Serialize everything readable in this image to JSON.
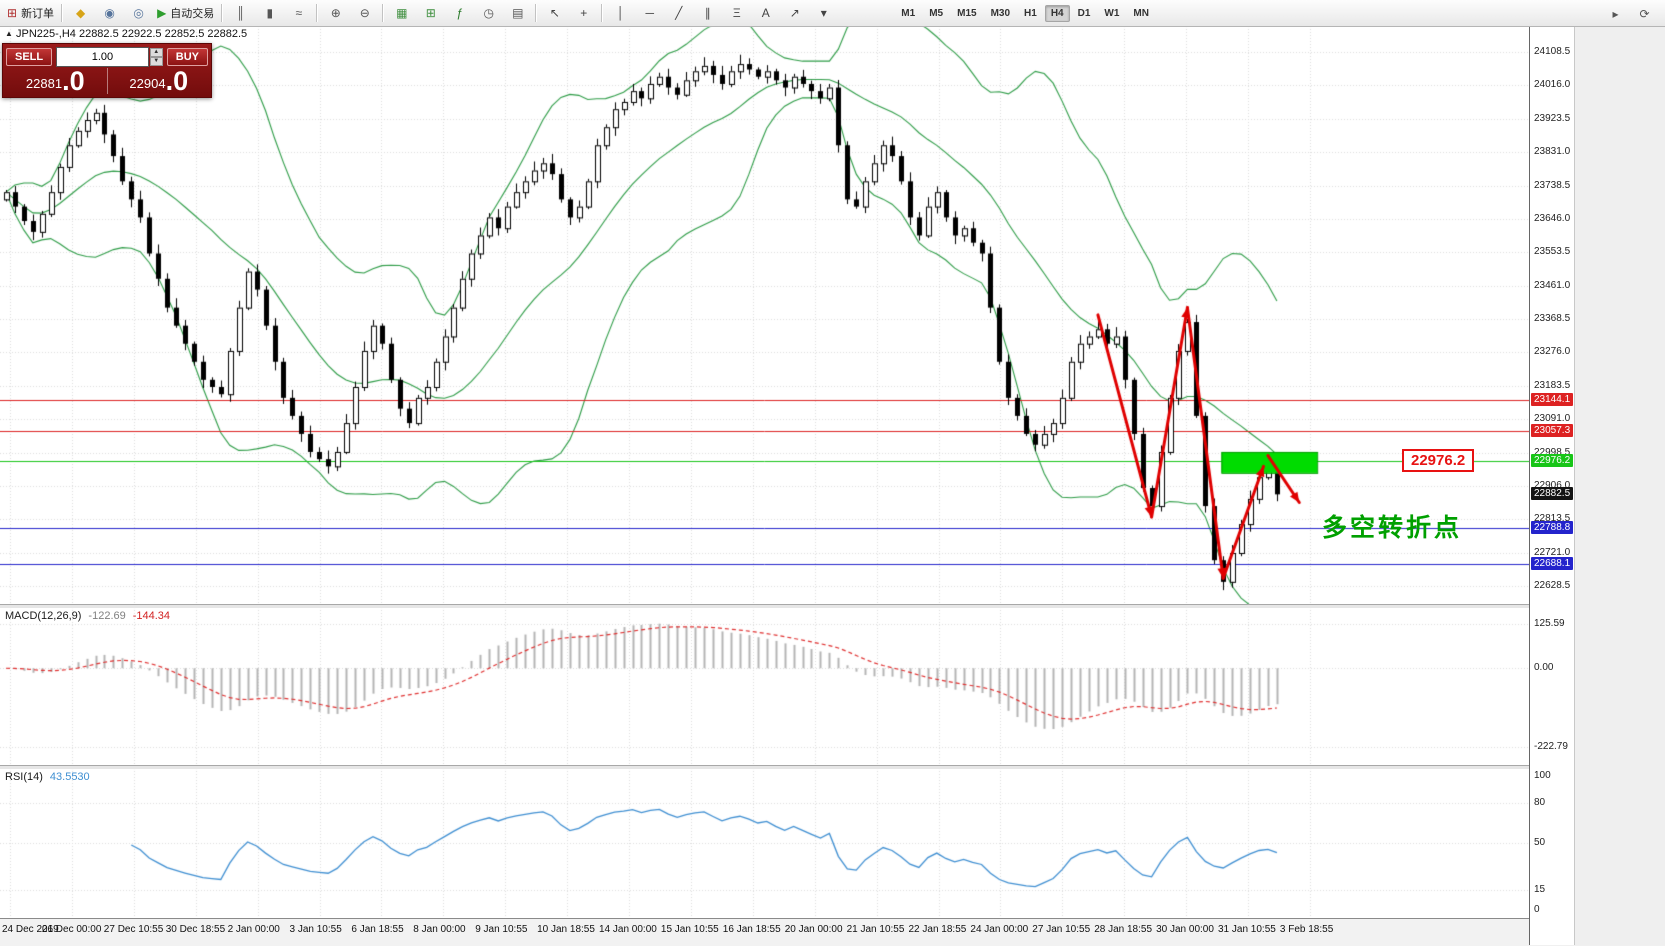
{
  "toolbar": {
    "groups": [
      {
        "items": [
          {
            "name": "new-order-button",
            "glyph": "⊞",
            "color": "#b03030",
            "label": "新订单"
          }
        ]
      },
      {
        "items": [
          {
            "name": "charts-list-icon",
            "glyph": "◆",
            "color": "#d7a418"
          },
          {
            "name": "profiles-icon",
            "glyph": "◉",
            "color": "#56749c"
          },
          {
            "name": "marketwatch-icon",
            "glyph": "◎",
            "color": "#56749c"
          },
          {
            "name": "autotrade-button",
            "glyph": "▶",
            "color": "#2e9e2e",
            "label": "自动交易"
          }
        ]
      },
      {
        "items": [
          {
            "name": "bar-chart-icon",
            "glyph": "║",
            "color": "#555555"
          },
          {
            "name": "candlestick-chart-icon",
            "glyph": "▮",
            "color": "#555555"
          },
          {
            "name": "line-chart-icon",
            "glyph": "≈",
            "color": "#555555"
          }
        ]
      },
      {
        "items": [
          {
            "name": "zoom-in-icon",
            "glyph": "⊕",
            "color": "#555555"
          },
          {
            "name": "zoom-out-icon",
            "glyph": "⊖",
            "color": "#555555"
          }
        ]
      },
      {
        "items": [
          {
            "name": "tile-windows-icon",
            "glyph": "▦",
            "color": "#3f8f3f"
          },
          {
            "name": "new-chart-icon",
            "glyph": "⊞",
            "color": "#3f8f3f"
          },
          {
            "name": "indicators-icon",
            "glyph": "ƒ",
            "color": "#2a7a2a"
          },
          {
            "name": "period-icon",
            "glyph": "◷",
            "color": "#555555"
          },
          {
            "name": "templates-icon",
            "glyph": "▤",
            "color": "#555555"
          }
        ]
      },
      {
        "items": [
          {
            "name": "cursor-icon",
            "glyph": "↖",
            "color": "#444444"
          },
          {
            "name": "crosshair-icon",
            "glyph": "+",
            "color": "#444444"
          }
        ]
      },
      {
        "items": [
          {
            "name": "vertical-line-icon",
            "glyph": "│",
            "color": "#444444"
          },
          {
            "name": "horizontal-line-icon",
            "glyph": "─",
            "color": "#444444"
          },
          {
            "name": "trendline-icon",
            "glyph": "╱",
            "color": "#444444"
          },
          {
            "name": "channel-icon",
            "glyph": "∥",
            "color": "#444444"
          },
          {
            "name": "fibonacci-icon",
            "glyph": "Ξ",
            "color": "#444444"
          },
          {
            "name": "text-icon",
            "glyph": "A",
            "color": "#444444"
          },
          {
            "name": "arrows-icon",
            "glyph": "↗",
            "color": "#444444"
          },
          {
            "name": "shapes-dropdown-icon",
            "glyph": "▾",
            "color": "#444444"
          }
        ]
      }
    ],
    "timeframes": [
      "M1",
      "M5",
      "M15",
      "M30",
      "H1",
      "H4",
      "D1",
      "W1",
      "MN"
    ],
    "active_timeframe": "H4",
    "right_icons": [
      {
        "name": "chart-shift-icon",
        "glyph": "▸",
        "color": "#555555"
      },
      {
        "name": "auto-scroll-icon",
        "glyph": "⟳",
        "color": "#555555"
      }
    ]
  },
  "symbol_bar": {
    "marker": "▲",
    "text": "JPN225-,H4  22882.5 22922.5 22852.5 22882.5"
  },
  "trade_panel": {
    "sell_label": "SELL",
    "buy_label": "BUY",
    "lot": "1.00",
    "sell_big": "22881",
    "sell_frac": ".0",
    "buy_big": "22904",
    "buy_frac": ".0"
  },
  "annotations": {
    "price_callout": "22976.2",
    "callout_price": 22976.2,
    "callout_color": "#e81212",
    "note_cn": "多空转折点",
    "note_anchor_price": 22800,
    "note_color": "#00a000"
  },
  "time_axis_note": "labels live in chart_data.0.x_labels",
  "chart_data": [
    {
      "type": "candlestick",
      "symbol": "JPN225-",
      "timeframe": "H4",
      "ohlc_display": "22882.5 22922.5 22852.5 22882.5",
      "ylim": [
        22628.5,
        24108.5
      ],
      "y_tick_labels": [
        "24108.5",
        "24016.0",
        "23923.5",
        "23831.0",
        "23738.5",
        "23646.0",
        "23553.5",
        "23461.0",
        "23368.5",
        "23276.0",
        "23183.5",
        "23091.0",
        "22998.5",
        "22906.0",
        "22813.5",
        "22721.0",
        "22628.5"
      ],
      "closes": [
        23720,
        23680,
        23640,
        23610,
        23660,
        23720,
        23790,
        23850,
        23890,
        23920,
        23940,
        23880,
        23820,
        23750,
        23700,
        23650,
        23550,
        23480,
        23400,
        23350,
        23300,
        23250,
        23200,
        23180,
        23160,
        23280,
        23400,
        23500,
        23450,
        23350,
        23250,
        23150,
        23100,
        23050,
        23000,
        22980,
        22960,
        23000,
        23080,
        23180,
        23280,
        23350,
        23300,
        23200,
        23120,
        23080,
        23150,
        23180,
        23250,
        23320,
        23400,
        23480,
        23550,
        23600,
        23650,
        23620,
        23680,
        23720,
        23750,
        23780,
        23800,
        23770,
        23700,
        23650,
        23680,
        23750,
        23850,
        23900,
        23950,
        23970,
        24000,
        23980,
        24020,
        24040,
        24010,
        23990,
        24030,
        24055,
        24070,
        24045,
        24020,
        24055,
        24075,
        24060,
        24040,
        24055,
        24030,
        24010,
        24040,
        24020,
        24000,
        23980,
        24010,
        23850,
        23700,
        23680,
        23750,
        23800,
        23850,
        23820,
        23750,
        23650,
        23600,
        23680,
        23720,
        23650,
        23600,
        23620,
        23580,
        23550,
        23400,
        23250,
        23150,
        23100,
        23050,
        23020,
        23050,
        23080,
        23150,
        23250,
        23300,
        23320,
        23340,
        23300,
        23320,
        23200,
        23050,
        22900,
        22850,
        23000,
        23150,
        23280,
        23360,
        23100,
        22850,
        22700,
        22640,
        22720,
        22800,
        22870,
        22930,
        22950,
        22882.5
      ],
      "bollinger": {
        "period": 20,
        "deviation": 2,
        "color": "#2d9c46"
      },
      "hlines": [
        {
          "price": 23144.1,
          "color": "#dd2222",
          "tag": "23144.1"
        },
        {
          "price": 23057.3,
          "color": "#dd2222",
          "tag": "23057.3"
        },
        {
          "price": 22976.2,
          "color": "#17c517",
          "tag": "22976.2"
        },
        {
          "price": 22788.8,
          "color": "#2424cc",
          "tag": "22788.8"
        },
        {
          "price": 22688.1,
          "color": "#2424cc",
          "tag": "22688.1"
        }
      ],
      "current_price": {
        "price": 22882.5,
        "tag": "22882.5",
        "color": "#141414"
      },
      "zone_box": {
        "i1": 135.8,
        "i2": 146.5,
        "p1": 22942,
        "p2": 23000,
        "fill": "#00dc00",
        "border": "#00a000"
      },
      "zigzag": {
        "color": "#e00000",
        "legs": [
          [
            [
              122,
              23380
            ],
            [
              128,
              22820
            ]
          ],
          [
            [
              128,
              22820
            ],
            [
              132,
              23400
            ]
          ],
          [
            [
              132,
              23400
            ],
            [
              136,
              22650
            ]
          ],
          [
            [
              136,
              22650
            ],
            [
              140.5,
              22960
            ]
          ],
          [
            [
              141,
              22990
            ],
            [
              144.5,
              22860
            ]
          ]
        ]
      },
      "x_labels": [
        "24 Dec 2019",
        "26 Dec 00:00",
        "27 Dec 10:55",
        "30 Dec 18:55",
        "2 Jan 00:00",
        "3 Jan 10:55",
        "6 Jan 18:55",
        "8 Jan 00:00",
        "9 Jan 10:55",
        "10 Jan 18:55",
        "14 Jan 00:00",
        "15 Jan 10:55",
        "16 Jan 18:55",
        "20 Jan 00:00",
        "21 Jan 10:55",
        "22 Jan 18:55",
        "24 Jan 00:00",
        "27 Jan 10:55",
        "28 Jan 18:55",
        "30 Jan 00:00",
        "31 Jan 10:55",
        "3 Feb 18:55"
      ]
    },
    {
      "type": "macd",
      "label": "MACD(12,26,9)",
      "value_main": "-122.69",
      "value_signal": "-144.34",
      "fast": 12,
      "slow": 26,
      "signal": 9,
      "ylim": [
        -250,
        150
      ],
      "y_ticks": [
        {
          "v": 125.59,
          "label": "125.59"
        },
        {
          "v": 0,
          "label": "0.00"
        },
        {
          "v": -222.79,
          "label": "-222.79"
        }
      ],
      "hist_color": "#b5b5b5",
      "signal_color": "#e03030"
    },
    {
      "type": "rsi",
      "label": "RSI(14)",
      "value": "43.5530",
      "period": 14,
      "ylim": [
        0,
        100
      ],
      "y_ticks": [
        {
          "v": 100,
          "label": "100"
        },
        {
          "v": 80,
          "label": "80"
        },
        {
          "v": 50,
          "label": "50"
        },
        {
          "v": 15,
          "label": "15"
        },
        {
          "v": 0,
          "label": "0"
        }
      ],
      "levels": [
        80,
        50,
        15
      ],
      "line_color": "#3f8fd2"
    }
  ]
}
